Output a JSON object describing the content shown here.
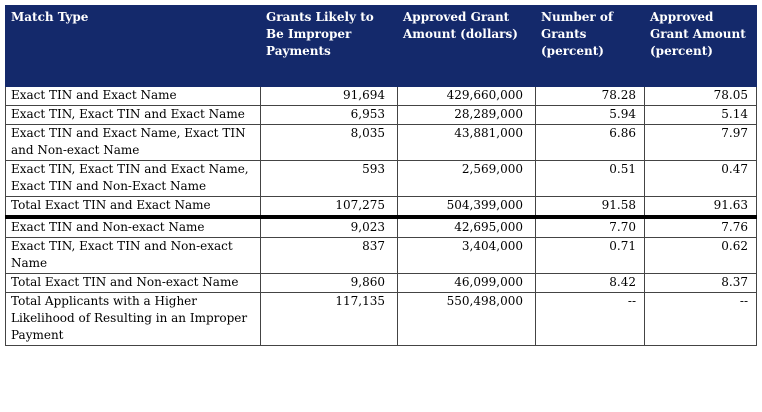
{
  "headers": [
    "Match Type",
    "Grants Likely to Be Improper Payments",
    "Approved Grant Amount (dollars)",
    "Number of Grants (percent)",
    "Approved Grant Amount (percent)"
  ],
  "rows": [
    {
      "match_type": "Exact TIN and Exact Name",
      "grants": "91,694",
      "amount": "429,660,000",
      "grants_pct": "78.28",
      "amount_pct": "78.05"
    },
    {
      "match_type": "Exact TIN, Exact TIN and Exact Name",
      "grants": "6,953",
      "amount": "28,289,000",
      "grants_pct": "5.94",
      "amount_pct": "5.14"
    },
    {
      "match_type": "Exact TIN and Exact Name, Exact TIN and Non-exact Name",
      "grants": "8,035",
      "amount": "43,881,000",
      "grants_pct": "6.86",
      "amount_pct": "7.97"
    },
    {
      "match_type": "Exact TIN, Exact TIN and Exact Name, Exact TIN and Non-Exact Name",
      "grants": "593",
      "amount": "2,569,000",
      "grants_pct": "0.51",
      "amount_pct": "0.47"
    },
    {
      "match_type": "Total Exact TIN and Exact Name",
      "grants": "107,275",
      "amount": "504,399,000",
      "grants_pct": "91.58",
      "amount_pct": "91.63"
    },
    {
      "match_type": "Exact TIN and Non-exact Name",
      "grants": "9,023",
      "amount": "42,695,000",
      "grants_pct": "7.70",
      "amount_pct": "7.76"
    },
    {
      "match_type": "Exact TIN, Exact TIN and Non-exact Name",
      "grants": "837",
      "amount": "3,404,000",
      "grants_pct": "0.71",
      "amount_pct": "0.62"
    },
    {
      "match_type": "Total Exact TIN and Non-exact Name",
      "grants": "9,860",
      "amount": "46,099,000",
      "grants_pct": "8.42",
      "amount_pct": "8.37"
    },
    {
      "match_type": "Total Applicants with a Higher Likelihood of Resulting in an Improper Payment",
      "grants": "117,135",
      "amount": "550,498,000",
      "grants_pct": "--",
      "amount_pct": "--"
    }
  ],
  "colors": {
    "header_bg": "#14296b",
    "header_text": "#ffffff"
  }
}
